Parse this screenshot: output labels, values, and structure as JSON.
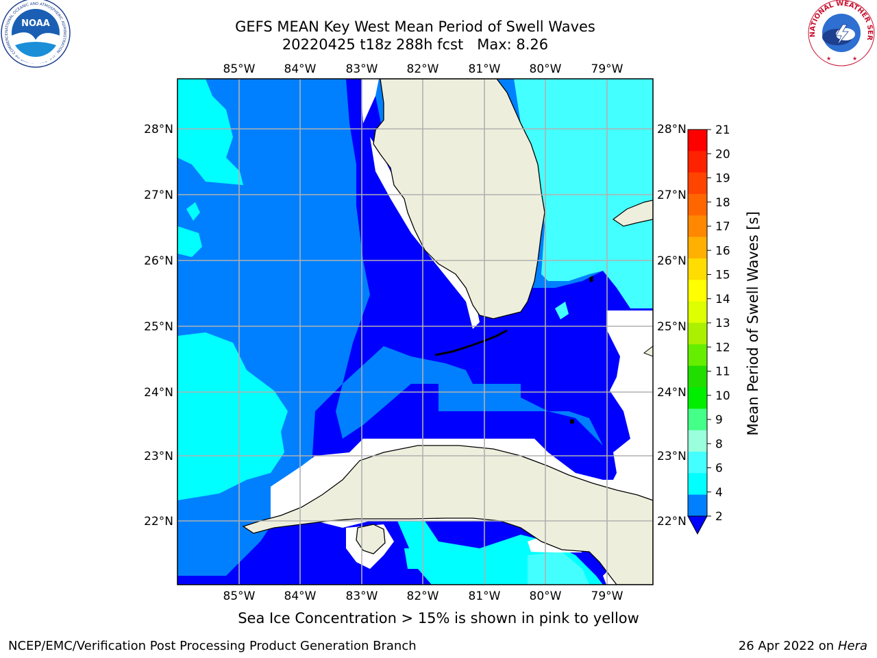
{
  "header": {
    "title_line1": "GEFS MEAN Key West Mean Period of Swell Waves",
    "title_line2": "20220425 t18z 288h fcst   Max: 8.26"
  },
  "logos": {
    "left": "NOAA",
    "left_ring_text": "NATIONAL OCEANIC AND ATMOSPHERIC ADMINISTRATION · U.S. DEPARTMENT OF COMMERCE",
    "right_ring_text": "NATIONAL WEATHER SERVICE"
  },
  "map": {
    "lon_labels": [
      "85°W",
      "84°W",
      "83°W",
      "82°W",
      "81°W",
      "80°W",
      "79°W"
    ],
    "lat_labels": [
      "28°N",
      "27°N",
      "26°N",
      "25°N",
      "24°N",
      "23°N",
      "22°N"
    ],
    "colors": {
      "land": "#eeeedd",
      "ocean_dark": "#0000ff",
      "ocean_mid": "#0080ff",
      "ocean_light": "#00ffff",
      "ocean_lighter": "#44ffff",
      "grid": "#b0b0b0"
    }
  },
  "colorbar": {
    "label": "Mean Period of Swell Waves [s]",
    "ticks": [
      "21",
      "20",
      "19",
      "18",
      "17",
      "16",
      "15",
      "14",
      "13",
      "12",
      "11",
      "10",
      "9",
      "8",
      "6",
      "4",
      "2"
    ],
    "colors": [
      "#ff0000",
      "#ff2200",
      "#ff4400",
      "#ff6600",
      "#ff8800",
      "#ffb000",
      "#ffdd00",
      "#ffff00",
      "#ddff00",
      "#aaf000",
      "#66ee00",
      "#22dd00",
      "#00ee00",
      "#44ff88",
      "#99ffdd",
      "#44ffff",
      "#00ffff",
      "#0080ff"
    ],
    "extend_color": "#0000ff"
  },
  "caption": "Sea Ice Concentration > 15% is shown in pink to yellow",
  "footer": {
    "left": "NCEP/EMC/Verification Post Processing Product Generation Branch",
    "right_date": "26 Apr 2022 on ",
    "right_host": "Hera"
  }
}
